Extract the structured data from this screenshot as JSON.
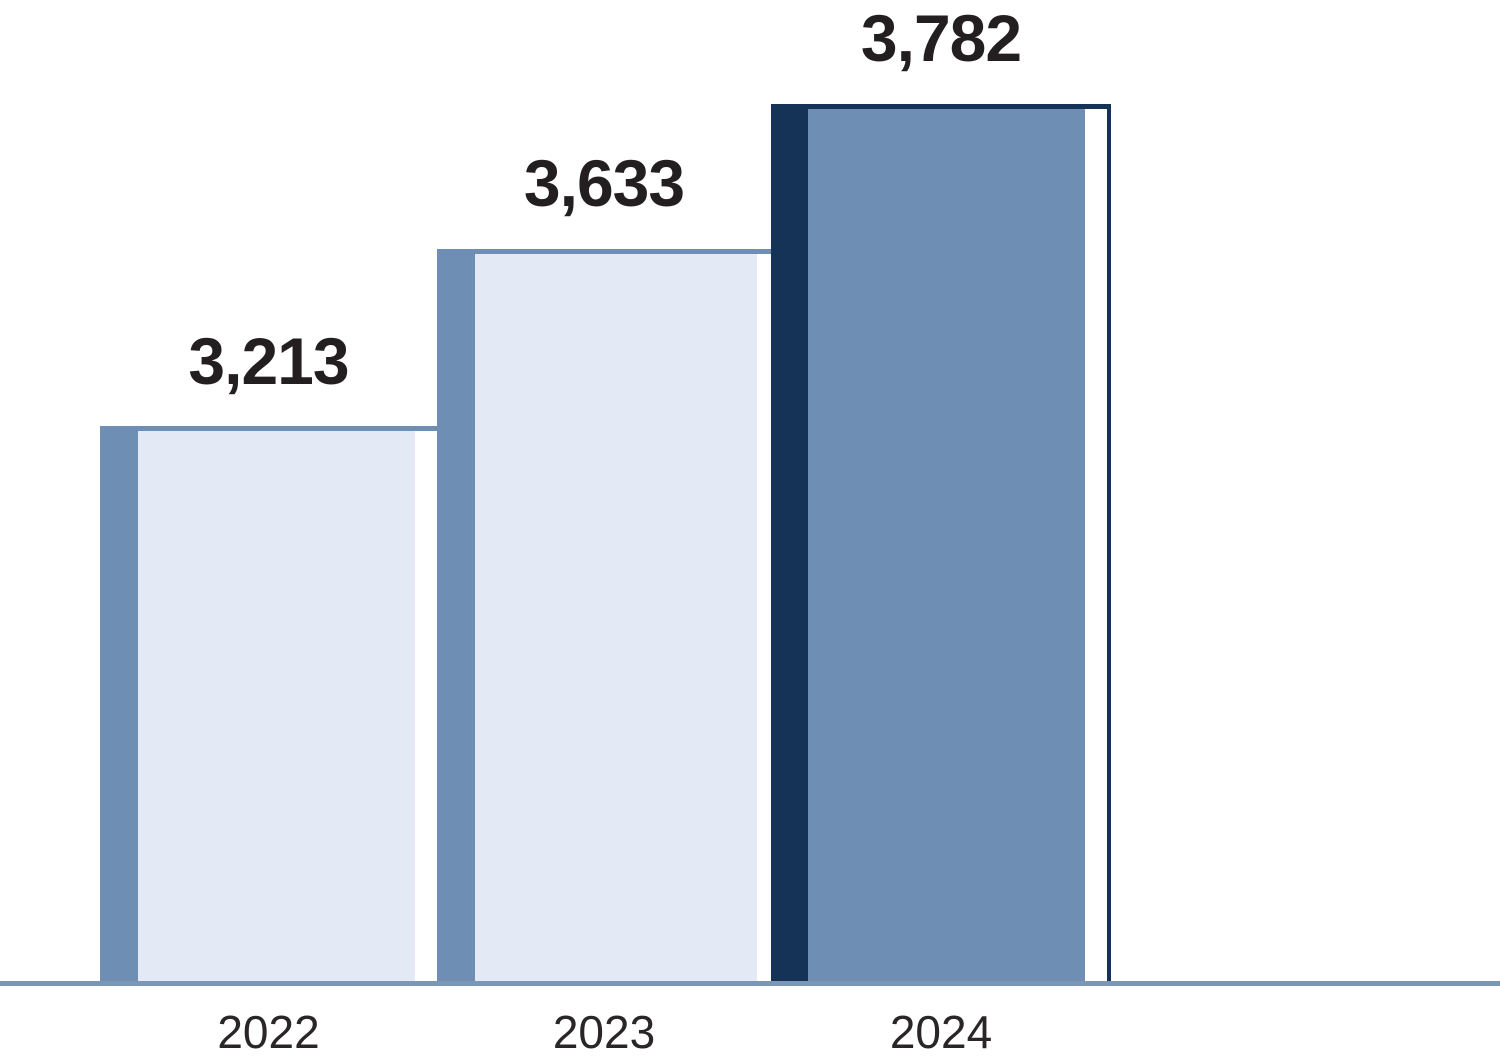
{
  "chart_data": {
    "type": "bar",
    "title": "",
    "xlabel": "",
    "ylabel": "",
    "legend": false,
    "grid": false,
    "axes": "no y-axis shown; single horizontal baseline under bars; bar heights as drawn are not strictly proportional to values",
    "categories": [
      "2022",
      "2023",
      "2024"
    ],
    "values": [
      3213,
      3633,
      3782
    ],
    "value_labels": [
      "3,213",
      "3,633",
      "3,782"
    ],
    "series": [
      {
        "category": "2022",
        "value": 3213,
        "value_label": "3,213",
        "fill": "#e4eaf5",
        "edge": "#6e8eb4"
      },
      {
        "category": "2023",
        "value": 3633,
        "value_label": "3,633",
        "fill": "#e4eaf5",
        "edge": "#6e8eb4"
      },
      {
        "category": "2024",
        "value": 3782,
        "value_label": "3,782",
        "fill": "#6e8eb4",
        "edge": "#143356"
      }
    ],
    "colors": {
      "baseline": "#7c96b6",
      "value_label_text": "#231f20",
      "axis_label_text": "#2a2627",
      "highlight_edge": "#143356",
      "normal_edge": "#6e8eb4",
      "normal_fill": "#e4eaf5",
      "highlight_fill": "#6e8eb4",
      "background": "#ffffff"
    }
  }
}
